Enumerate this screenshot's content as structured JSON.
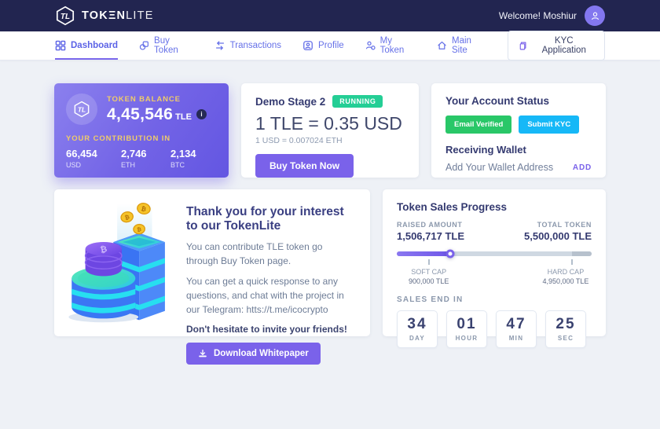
{
  "colors": {
    "accent": "#7a62ea",
    "navbar": "#222550",
    "success_green": "#29c768",
    "running_green": "#24ce95",
    "kyc_blue": "#16b8f7",
    "gold_label": "#efcb6a"
  },
  "topbar": {
    "brand": {
      "part1": "TOK",
      "e_glyph": "Ξ",
      "part2": "N",
      "part3": "LITE"
    },
    "welcome": "Welcome! Moshiur"
  },
  "nav": {
    "items": [
      {
        "label": "Dashboard",
        "active": true
      },
      {
        "label": "Buy Token",
        "active": false
      },
      {
        "label": "Transactions",
        "active": false
      },
      {
        "label": "Profile",
        "active": false
      },
      {
        "label": "My Token",
        "active": false
      },
      {
        "label": "Main Site",
        "active": false
      }
    ],
    "kyc_button": "KYC Application"
  },
  "balance_card": {
    "label": "TOKEN BALANCE",
    "value": "4,45,546",
    "unit": "TLE",
    "info_glyph": "i",
    "contribution_label": "YOUR CONTRIBUTION IN",
    "contributions": [
      {
        "value": "66,454",
        "currency": "USD"
      },
      {
        "value": "2,746",
        "currency": "ETH"
      },
      {
        "value": "2,134",
        "currency": "BTC"
      }
    ]
  },
  "stage_card": {
    "title": "Demo Stage 2",
    "status": "RUNNING",
    "rate": "1 TLE = 0.35 USD",
    "rate_note": "1 USD = 0.007024 ETH",
    "buy_button": "Buy Token Now"
  },
  "account_card": {
    "title": "Your Account Status",
    "email_badge": "Email Verified",
    "kyc_badge": "Submit KYC",
    "wallet_title": "Receiving Wallet",
    "wallet_hint": "Add Your Wallet Address",
    "add_link": "ADD"
  },
  "thankyou_card": {
    "title": "Thank you for your interest to our TokenLite",
    "p1": "You can contribute TLE token go through Buy Token page.",
    "p2_prefix": "You can get a quick response to any questions, and chat with the project in our Telegram: ",
    "telegram_link": "htts://t.me/icocrypto",
    "p3": "Don't hesitate to invite your friends!",
    "download_button": "Download Whitepaper"
  },
  "progress_card": {
    "title": "Token Sales Progress",
    "raised_label": "RAISED AMOUNT",
    "raised_value": "1,506,717 TLE",
    "total_label": "TOTAL TOKEN",
    "total_value": "5,500,000 TLE",
    "soft_cap_label": "SOFT CAP",
    "soft_cap_value": "900,000 TLE",
    "hard_cap_label": "HARD CAP",
    "hard_cap_value": "4,950,000 TLE",
    "slider": {
      "progress_percent": 27.4,
      "soft_cap_percent": 16.4,
      "hard_cap_percent": 90
    },
    "sales_end_label": "SALES END IN",
    "countdown": [
      {
        "value": "34",
        "unit": "DAY"
      },
      {
        "value": "01",
        "unit": "HOUR"
      },
      {
        "value": "47",
        "unit": "MIN"
      },
      {
        "value": "25",
        "unit": "SEC"
      }
    ]
  }
}
